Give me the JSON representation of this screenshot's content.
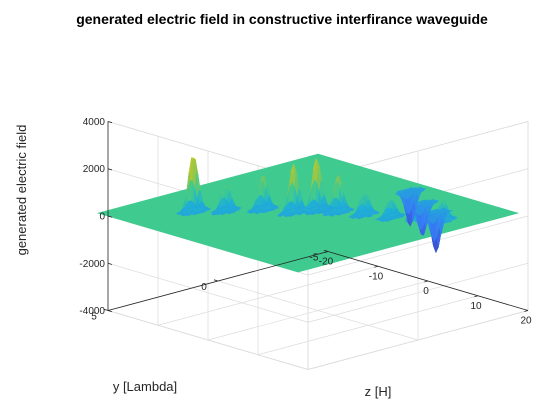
{
  "chart_data": {
    "type": "surface",
    "title": "generated electric field in constructive interfirance waveguide",
    "xlabel": "z [H]",
    "ylabel": "y [Lambda]",
    "zlabel": "generated electric field",
    "xlim": [
      -20,
      20
    ],
    "ylim": [
      -5,
      5
    ],
    "zlim": [
      -4000,
      4000
    ],
    "x_ticks": [
      -20,
      -10,
      0,
      10,
      20
    ],
    "x_tick_labels": [
      "-20",
      "-10",
      "0",
      "10",
      "20"
    ],
    "y_ticks": [
      -5,
      0,
      5
    ],
    "y_tick_labels": [
      "-5",
      "0",
      "5"
    ],
    "z_ticks": [
      -4000,
      -2000,
      0,
      2000,
      4000
    ],
    "z_tick_labels": [
      "-4000",
      "-2000",
      "0",
      "2000",
      "4000"
    ],
    "grid": true,
    "colormap": "parula",
    "colors": {
      "flat": "#3fca8f",
      "low": "#3e26a8",
      "mid": "#1eb1d3",
      "high": "#f9fb0e"
    },
    "surface": {
      "z_min": -22,
      "z_max": 18,
      "y_min": -5,
      "y_max": 5,
      "baseline": 0,
      "peaks": [
        {
          "z": -13.5,
          "y": 2.6,
          "value": 2500
        },
        {
          "z": -10.5,
          "y": 1.8,
          "value": 1200
        },
        {
          "z": -7.5,
          "y": 0.8,
          "value": 1500
        },
        {
          "z": -3.5,
          "y": 0.3,
          "value": 2100
        },
        {
          "z": -2.0,
          "y": -0.4,
          "value": 2300
        },
        {
          "z": 0.5,
          "y": -0.8,
          "value": 1600
        },
        {
          "z": 4.0,
          "y": -1.2,
          "value": 1000
        },
        {
          "z": 7.5,
          "y": -1.6,
          "value": 800
        },
        {
          "z": 10.5,
          "y": -2.2,
          "value": 700
        },
        {
          "z": 13.5,
          "y": -2.6,
          "value": 900
        },
        {
          "z": 10.0,
          "y": -3.1,
          "value": -1700
        },
        {
          "z": 5.5,
          "y": -3.5,
          "value": -1400
        },
        {
          "z": 0.0,
          "y": -4.2,
          "value": -1500
        }
      ]
    }
  }
}
